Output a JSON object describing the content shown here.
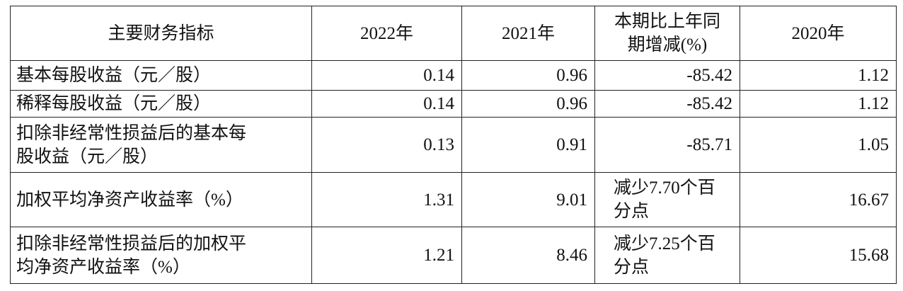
{
  "table": {
    "header": [
      "主要财务指标",
      "2022年",
      "2021年",
      "本期比上年同\n期增减(%)",
      "2020年"
    ],
    "rows": [
      [
        "基本每股收益（元／股）",
        "0.14",
        "0.96",
        "-85.42",
        "1.12"
      ],
      [
        "稀释每股收益（元／股）",
        "0.14",
        "0.96",
        "-85.42",
        "1.12"
      ],
      [
        "扣除非经常性损益后的基本每\n股收益（元／股）",
        "0.13",
        "0.91",
        "-85.71",
        "1.05"
      ],
      [
        "加权平均净资产收益率（%）",
        "1.31",
        "9.01",
        "减少7.70个百\n分点",
        "16.67"
      ],
      [
        "扣除非经常性损益后的加权平\n均净资产收益率（%）",
        "1.21",
        "8.46",
        "减少7.25个百\n分点",
        "15.68"
      ]
    ]
  }
}
